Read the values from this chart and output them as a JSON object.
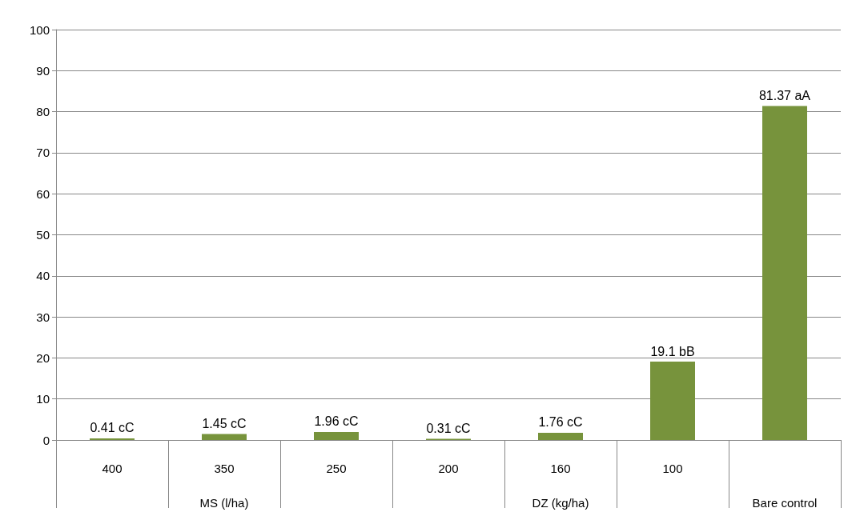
{
  "chart_data": {
    "type": "bar",
    "categories": [
      "400",
      "350",
      "250",
      "200",
      "160",
      "100",
      null
    ],
    "values": [
      0.41,
      1.45,
      1.96,
      0.31,
      1.76,
      19.1,
      81.37
    ],
    "value_labels": [
      "0.41 cC",
      "1.45 cC",
      "1.96 cC",
      "0.31 cC",
      "1.76 cC",
      "19.1 bB",
      "81.37 aA"
    ],
    "color": "#77933c",
    "ylim": [
      0,
      100
    ],
    "yticks": [
      0,
      10,
      20,
      30,
      40,
      50,
      60,
      70,
      80,
      90,
      100
    ],
    "grid": "y",
    "annotations": [
      "MS (l/ha)",
      "DZ (kg/ha)",
      "Bare control"
    ]
  }
}
